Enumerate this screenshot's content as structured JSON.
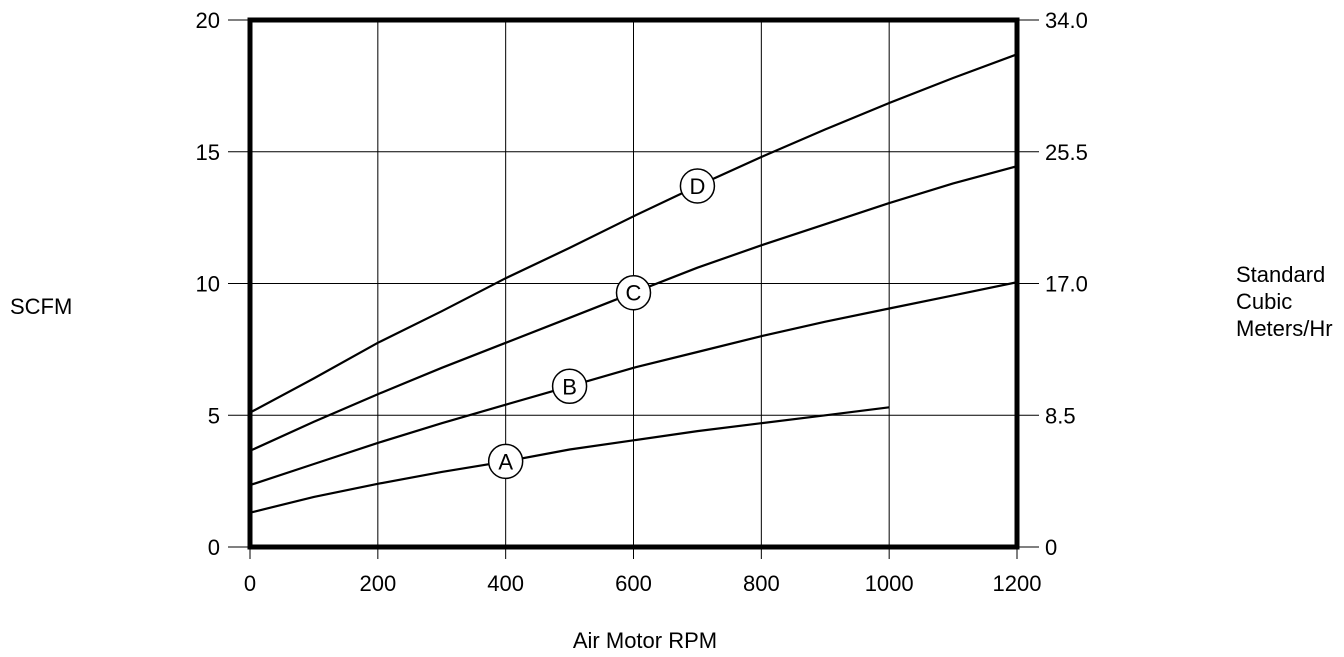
{
  "chart_data": {
    "type": "line",
    "xlabel": "Air Motor RPM",
    "ylabel": "SCFM",
    "y2label_lines": [
      "Standard",
      "Cubic",
      "Meters/Hr"
    ],
    "xlim": [
      0,
      1200
    ],
    "ylim": [
      0,
      20
    ],
    "x_ticks": [
      0,
      200,
      400,
      600,
      800,
      1000,
      1200
    ],
    "x_tick_labels": [
      "0",
      "200",
      "400",
      "600",
      "800",
      "1000",
      "1200"
    ],
    "y_ticks": [
      0,
      5,
      10,
      15,
      20
    ],
    "y_tick_labels": [
      "0",
      "5",
      "10",
      "15",
      "20"
    ],
    "y2_ticks": [
      0,
      5,
      10,
      15,
      20
    ],
    "y2_tick_labels": [
      "0",
      "8.5",
      "17.0",
      "25.5",
      "34.0"
    ],
    "grid": true,
    "series": [
      {
        "name": "A",
        "x": [
          0,
          100,
          200,
          300,
          400,
          500,
          600,
          700,
          800,
          900,
          1000
        ],
        "y": [
          1.3,
          1.9,
          2.4,
          2.85,
          3.25,
          3.7,
          4.05,
          4.4,
          4.7,
          5.0,
          5.3
        ],
        "marker_x": 400
      },
      {
        "name": "B",
        "x": [
          0,
          100,
          200,
          300,
          400,
          500,
          600,
          700,
          800,
          900,
          1000,
          1100,
          1200
        ],
        "y": [
          2.35,
          3.15,
          3.95,
          4.7,
          5.4,
          6.1,
          6.8,
          7.4,
          8.0,
          8.55,
          9.05,
          9.55,
          10.05
        ],
        "marker_x": 500
      },
      {
        "name": "C",
        "x": [
          0,
          100,
          200,
          300,
          400,
          500,
          600,
          700,
          800,
          900,
          1000,
          1100,
          1200
        ],
        "y": [
          3.65,
          4.75,
          5.8,
          6.8,
          7.75,
          8.7,
          9.65,
          10.6,
          11.45,
          12.25,
          13.05,
          13.8,
          14.45
        ],
        "marker_x": 600
      },
      {
        "name": "D",
        "x": [
          0,
          100,
          200,
          300,
          400,
          500,
          600,
          700,
          800,
          900,
          1000,
          1100,
          1200
        ],
        "y": [
          5.1,
          6.4,
          7.75,
          8.95,
          10.2,
          11.35,
          12.55,
          13.7,
          14.8,
          15.85,
          16.85,
          17.8,
          18.7
        ],
        "marker_x": 700
      }
    ]
  }
}
